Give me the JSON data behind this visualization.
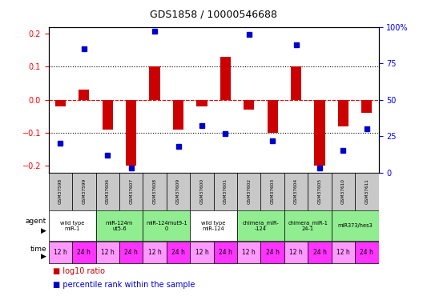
{
  "title": "GDS1858 / 10000546688",
  "samples": [
    "GSM37598",
    "GSM37599",
    "GSM37606",
    "GSM37607",
    "GSM37608",
    "GSM37609",
    "GSM37600",
    "GSM37601",
    "GSM37602",
    "GSM37603",
    "GSM37604",
    "GSM37605",
    "GSM37610",
    "GSM37611"
  ],
  "log10_ratio": [
    -0.02,
    0.03,
    -0.09,
    -0.2,
    0.1,
    -0.09,
    -0.02,
    0.13,
    -0.03,
    -0.1,
    0.1,
    -0.2,
    -0.08,
    -0.04
  ],
  "percentile_rank": [
    20,
    85,
    12,
    3,
    97,
    18,
    32,
    27,
    95,
    22,
    88,
    3,
    15,
    30
  ],
  "agents": [
    {
      "label": "wild type\nmiR-1",
      "cols": [
        0,
        1
      ],
      "color": "#ffffff"
    },
    {
      "label": "miR-124m\nut5-6",
      "cols": [
        2,
        3
      ],
      "color": "#90ee90"
    },
    {
      "label": "miR-124mut9-1\n0",
      "cols": [
        4,
        5
      ],
      "color": "#90ee90"
    },
    {
      "label": "wild type\nmiR-124",
      "cols": [
        6,
        7
      ],
      "color": "#ffffff"
    },
    {
      "label": "chimera_miR-\n-124",
      "cols": [
        8,
        9
      ],
      "color": "#90ee90"
    },
    {
      "label": "chimera_miR-1\n24-1",
      "cols": [
        10,
        11
      ],
      "color": "#90ee90"
    },
    {
      "label": "miR373/hes3",
      "cols": [
        12,
        13
      ],
      "color": "#90ee90"
    }
  ],
  "time_labels": [
    "12 h",
    "24 h",
    "12 h",
    "24 h",
    "12 h",
    "24 h",
    "12 h",
    "24 h",
    "12 h",
    "24 h",
    "12 h",
    "24 h",
    "12 h",
    "24 h"
  ],
  "time_colors": [
    "#ff99ff",
    "#ff33ff",
    "#ff99ff",
    "#ff33ff",
    "#ff99ff",
    "#ff33ff",
    "#ff99ff",
    "#ff33ff",
    "#ff99ff",
    "#ff33ff",
    "#ff99ff",
    "#ff33ff",
    "#ff99ff",
    "#ff33ff"
  ],
  "ylim": [
    -0.22,
    0.22
  ],
  "yticks_left": [
    -0.2,
    -0.1,
    0.0,
    0.1,
    0.2
  ],
  "yticks_right_vals": [
    0,
    25,
    50,
    75,
    100
  ],
  "yticks_right_labels": [
    "0",
    "25",
    "50",
    "75",
    "100%"
  ],
  "bar_color": "#cc0000",
  "dot_color": "#0000cc",
  "sample_bg": "#c8c8c8",
  "border_color": "#000000"
}
